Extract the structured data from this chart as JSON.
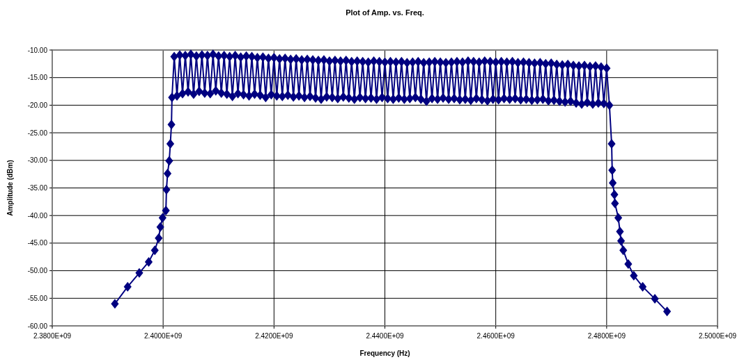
{
  "chart_data": {
    "type": "line",
    "title": "Plot of Amp. vs. Freq.",
    "xlabel": "Frequency (Hz)",
    "ylabel": "Amplitude (dBm)",
    "xlim": [
      2380000000.0,
      2500000000.0
    ],
    "xticks": [
      {
        "value": 2380000000.0,
        "label": "2.3800E+09"
      },
      {
        "value": 2400000000.0,
        "label": "2.4000E+09"
      },
      {
        "value": 2420000000.0,
        "label": "2.4200E+09"
      },
      {
        "value": 2440000000.0,
        "label": "2.4400E+09"
      },
      {
        "value": 2460000000.0,
        "label": "2.4600E+09"
      },
      {
        "value": 2480000000.0,
        "label": "2.4800E+09"
      },
      {
        "value": 2500000000.0,
        "label": "2.5000E+09"
      }
    ],
    "ylim": [
      -60,
      -10
    ],
    "yticks": [
      {
        "value": -60,
        "label": "-60.00"
      },
      {
        "value": -55,
        "label": "-55.00"
      },
      {
        "value": -50,
        "label": "-50.00"
      },
      {
        "value": -45,
        "label": "-45.00"
      },
      {
        "value": -40,
        "label": "-40.00"
      },
      {
        "value": -35,
        "label": "-35.00"
      },
      {
        "value": -30,
        "label": "-30.00"
      },
      {
        "value": -25,
        "label": "-25.00"
      },
      {
        "value": -20,
        "label": "-20.00"
      },
      {
        "value": -15,
        "label": "-15.00"
      },
      {
        "value": -10,
        "label": "-10.00"
      }
    ],
    "grid": true,
    "marker": "diamond",
    "line_style": "solid",
    "series": [
      {
        "color": "#000080",
        "x": [
          2391300000.0,
          2393600000.0,
          2395700000.0,
          2397400000.0,
          2398500000.0,
          2399200000.0,
          2399500000.0,
          2399900000.0,
          2400500000.0,
          2400600000.0,
          2400800000.0,
          2401100000.0,
          2401300000.0,
          2401500000.0,
          2401600000.0,
          2402000000.0,
          2402500000.0,
          2403000000.0,
          2403500000.0,
          2404000000.0,
          2404500000.0,
          2405000000.0,
          2405500000.0,
          2406000000.0,
          2406500000.0,
          2407000000.0,
          2407500000.0,
          2408000000.0,
          2408500000.0,
          2409000000.0,
          2409500000.0,
          2410000000.0,
          2410500000.0,
          2411000000.0,
          2411500000.0,
          2412000000.0,
          2412500000.0,
          2413000000.0,
          2413500000.0,
          2414000000.0,
          2414500000.0,
          2415000000.0,
          2415500000.0,
          2416000000.0,
          2416500000.0,
          2417000000.0,
          2417500000.0,
          2418000000.0,
          2418500000.0,
          2419000000.0,
          2419500000.0,
          2420000000.0,
          2420500000.0,
          2421000000.0,
          2421500000.0,
          2422000000.0,
          2422500000.0,
          2423000000.0,
          2423500000.0,
          2424000000.0,
          2424500000.0,
          2425000000.0,
          2425500000.0,
          2426000000.0,
          2426500000.0,
          2427000000.0,
          2427500000.0,
          2428000000.0,
          2428500000.0,
          2429000000.0,
          2429500000.0,
          2430000000.0,
          2430500000.0,
          2431000000.0,
          2431500000.0,
          2432000000.0,
          2432500000.0,
          2433000000.0,
          2433500000.0,
          2434000000.0,
          2434500000.0,
          2435000000.0,
          2435500000.0,
          2436000000.0,
          2436500000.0,
          2437000000.0,
          2437500000.0,
          2438000000.0,
          2438500000.0,
          2439000000.0,
          2439500000.0,
          2440000000.0,
          2440500000.0,
          2441000000.0,
          2441500000.0,
          2442000000.0,
          2442500000.0,
          2443000000.0,
          2443500000.0,
          2444000000.0,
          2444500000.0,
          2445000000.0,
          2445500000.0,
          2446000000.0,
          2446500000.0,
          2447000000.0,
          2447500000.0,
          2448000000.0,
          2448500000.0,
          2449000000.0,
          2449500000.0,
          2450000000.0,
          2450500000.0,
          2451000000.0,
          2451500000.0,
          2452000000.0,
          2452500000.0,
          2453000000.0,
          2453500000.0,
          2454000000.0,
          2454500000.0,
          2455000000.0,
          2455500000.0,
          2456000000.0,
          2456500000.0,
          2457000000.0,
          2457500000.0,
          2458000000.0,
          2458500000.0,
          2459000000.0,
          2459500000.0,
          2460000000.0,
          2460500000.0,
          2461000000.0,
          2461500000.0,
          2462000000.0,
          2462500000.0,
          2463000000.0,
          2463500000.0,
          2464000000.0,
          2464500000.0,
          2465000000.0,
          2465500000.0,
          2466000000.0,
          2466500000.0,
          2467000000.0,
          2467500000.0,
          2468000000.0,
          2468500000.0,
          2469000000.0,
          2469500000.0,
          2470000000.0,
          2470500000.0,
          2471000000.0,
          2471500000.0,
          2472000000.0,
          2472500000.0,
          2473000000.0,
          2473500000.0,
          2474000000.0,
          2474500000.0,
          2475000000.0,
          2475500000.0,
          2476000000.0,
          2476500000.0,
          2477000000.0,
          2477500000.0,
          2478000000.0,
          2478500000.0,
          2479000000.0,
          2479500000.0,
          2480000000.0,
          2480500000.0,
          2480900000.0,
          2481000000.0,
          2481100000.0,
          2481400000.0,
          2481500000.0,
          2482100000.0,
          2482400000.0,
          2482600000.0,
          2483000000.0,
          2483900000.0,
          2484900000.0,
          2486500000.0,
          2488700000.0,
          2490900000.0
        ],
        "values": [
          -56.0,
          -52.9,
          -50.4,
          -48.4,
          -46.3,
          -44.1,
          -42.1,
          -40.4,
          -39.1,
          -35.3,
          -32.4,
          -30.1,
          -27.0,
          -23.5,
          -18.6,
          -11.2,
          -18.3,
          -10.9,
          -17.9,
          -11.0,
          -17.6,
          -10.8,
          -18.0,
          -11.1,
          -17.5,
          -10.9,
          -17.8,
          -11.0,
          -17.9,
          -10.8,
          -17.4,
          -11.1,
          -17.8,
          -11.0,
          -18.0,
          -11.2,
          -18.4,
          -11.0,
          -17.9,
          -11.3,
          -18.1,
          -11.1,
          -18.3,
          -11.2,
          -18.0,
          -11.4,
          -18.2,
          -11.3,
          -18.6,
          -11.5,
          -18.1,
          -11.4,
          -18.3,
          -11.6,
          -18.4,
          -11.5,
          -18.2,
          -11.7,
          -18.5,
          -11.6,
          -18.3,
          -11.8,
          -18.6,
          -11.7,
          -18.4,
          -11.8,
          -18.7,
          -11.9,
          -18.9,
          -11.8,
          -18.5,
          -12.0,
          -18.6,
          -11.9,
          -18.8,
          -12.0,
          -18.5,
          -11.9,
          -18.7,
          -12.1,
          -18.9,
          -12.0,
          -18.6,
          -12.1,
          -18.8,
          -12.2,
          -18.7,
          -12.0,
          -18.9,
          -12.1,
          -18.6,
          -12.2,
          -18.8,
          -12.1,
          -18.9,
          -12.2,
          -18.7,
          -12.1,
          -18.9,
          -12.3,
          -18.8,
          -12.2,
          -18.6,
          -12.1,
          -18.9,
          -12.3,
          -19.3,
          -12.2,
          -18.8,
          -12.1,
          -18.9,
          -12.2,
          -18.7,
          -12.3,
          -18.9,
          -12.2,
          -18.8,
          -12.1,
          -19.0,
          -12.2,
          -18.9,
          -12.0,
          -19.1,
          -12.1,
          -18.8,
          -12.2,
          -19.0,
          -12.0,
          -19.2,
          -12.1,
          -18.9,
          -12.2,
          -19.0,
          -12.1,
          -18.8,
          -12.2,
          -18.9,
          -12.1,
          -18.8,
          -12.3,
          -19.0,
          -12.2,
          -18.9,
          -12.3,
          -19.1,
          -12.4,
          -19.0,
          -12.3,
          -18.9,
          -12.5,
          -19.2,
          -12.4,
          -19.1,
          -12.6,
          -19.3,
          -12.7,
          -19.4,
          -12.6,
          -19.3,
          -12.8,
          -19.6,
          -12.9,
          -19.8,
          -12.8,
          -19.5,
          -13.0,
          -19.8,
          -12.9,
          -19.6,
          -13.1,
          -19.7,
          -13.3,
          -20.0,
          -27.0,
          -31.8,
          -34.1,
          -36.2,
          -37.8,
          -40.4,
          -42.9,
          -44.6,
          -46.3,
          -48.8,
          -50.9,
          -52.9,
          -55.1,
          -57.4
        ]
      }
    ]
  }
}
